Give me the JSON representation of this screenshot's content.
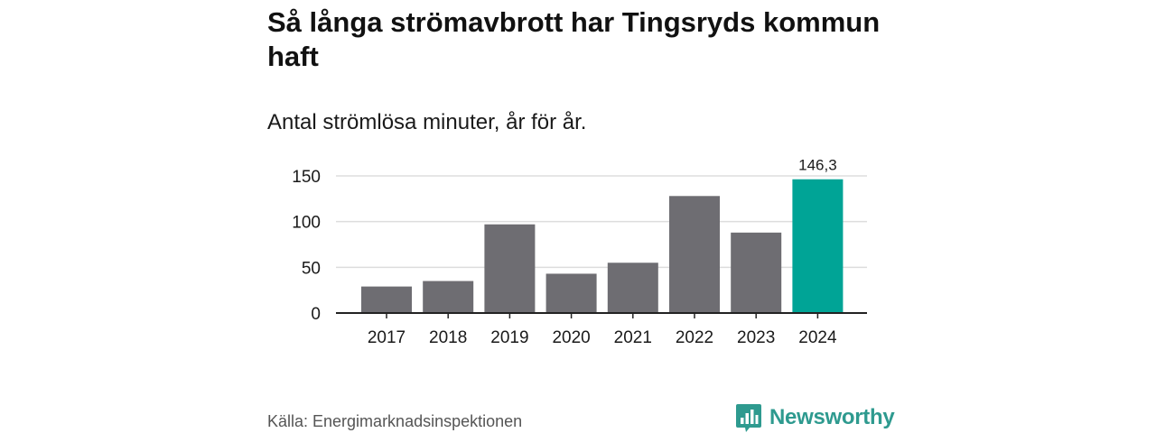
{
  "chart_data": {
    "type": "bar",
    "title": "Så långa strömavbrott har Tingsryds kommun haft",
    "subtitle": "Antal strömlösa minuter, år för år.",
    "categories": [
      "2017",
      "2018",
      "2019",
      "2020",
      "2021",
      "2022",
      "2023",
      "2024"
    ],
    "values": [
      29,
      35,
      97,
      43,
      55,
      128,
      88,
      146.3
    ],
    "highlight_index": 7,
    "highlight_label": "146,3",
    "ylim": [
      0,
      150
    ],
    "yticks": [
      0,
      50,
      100,
      150
    ],
    "xlabel": "",
    "ylabel": "",
    "colors": {
      "bar": "#6e6d72",
      "highlight": "#00a496",
      "grid": "#dddddd",
      "axis": "#222222"
    }
  },
  "source": "Källa: Energimarknadsinspektionen",
  "logo": {
    "text": "Newsworthy",
    "icon": "bar-chart-speech-icon",
    "color": "#2e9a8f"
  }
}
